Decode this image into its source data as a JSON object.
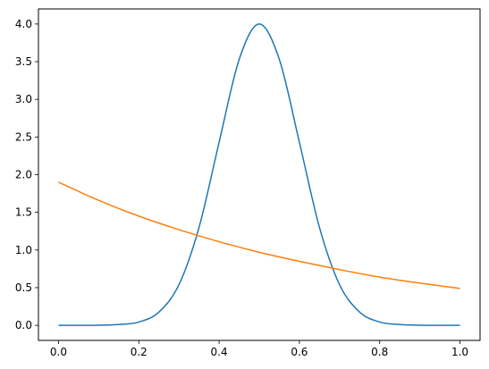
{
  "chart_data": {
    "type": "line",
    "title": "",
    "xlabel": "",
    "ylabel": "",
    "xlim": [
      -0.05,
      1.05
    ],
    "ylim": [
      -0.2,
      4.2
    ],
    "grid": false,
    "x_ticks": [
      0.0,
      0.2,
      0.4,
      0.6,
      0.8,
      1.0
    ],
    "x_tick_labels": [
      "0.0",
      "0.2",
      "0.4",
      "0.6",
      "0.8",
      "1.0"
    ],
    "y_ticks": [
      0.0,
      0.5,
      1.0,
      1.5,
      2.0,
      2.5,
      3.0,
      3.5,
      4.0
    ],
    "y_tick_labels": [
      "0.0",
      "0.5",
      "1.0",
      "1.5",
      "2.0",
      "2.5",
      "3.0",
      "3.5",
      "4.0"
    ],
    "series": [
      {
        "color": "#1f77b4",
        "x": [
          0.0,
          0.05,
          0.1,
          0.15,
          0.2,
          0.25,
          0.3,
          0.35,
          0.4,
          0.45,
          0.5,
          0.55,
          0.6,
          0.65,
          0.7,
          0.75,
          0.8,
          0.85,
          0.9,
          0.95,
          1.0
        ],
        "y": [
          0.0,
          0.0,
          0.002,
          0.011,
          0.044,
          0.176,
          0.54,
          1.3,
          2.43,
          3.53,
          4.0,
          3.53,
          2.43,
          1.3,
          0.54,
          0.176,
          0.044,
          0.011,
          0.002,
          0.0,
          0.0
        ]
      },
      {
        "color": "#ff7f0e",
        "x": [
          0.0,
          0.1,
          0.2,
          0.3,
          0.4,
          0.5,
          0.6,
          0.7,
          0.8,
          0.9,
          1.0
        ],
        "y": [
          1.9,
          1.66,
          1.45,
          1.27,
          1.11,
          0.97,
          0.85,
          0.74,
          0.64,
          0.56,
          0.49
        ]
      }
    ]
  }
}
